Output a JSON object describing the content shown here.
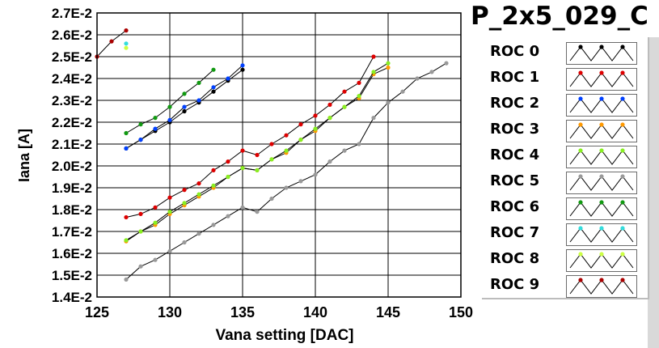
{
  "title": "P_2x5_029_C",
  "chart_data": {
    "type": "line",
    "xlabel": "Vana setting [DAC]",
    "ylabel": "Iana [A]",
    "xlim": [
      125,
      150
    ],
    "ylim": [
      0.014,
      0.027
    ],
    "xticks": [
      "125",
      "130",
      "135",
      "140",
      "145",
      "150"
    ],
    "yticks": [
      "1.4E-2",
      "1.5E-2",
      "1.6E-2",
      "1.7E-2",
      "1.8E-2",
      "1.9E-2",
      "2.0E-2",
      "2.1E-2",
      "2.2E-2",
      "2.3E-2",
      "2.4E-2",
      "2.5E-2",
      "2.6E-2",
      "2.7E-2"
    ],
    "grid": true,
    "legend_position": "right",
    "series": [
      {
        "name": "ROC 0",
        "color": "#000000",
        "x": [
          127,
          128,
          129,
          130,
          131,
          132,
          133,
          134,
          135
        ],
        "y": [
          0.0208,
          0.0212,
          0.0216,
          0.022,
          0.0225,
          0.0229,
          0.0234,
          0.0239,
          0.0244
        ]
      },
      {
        "name": "ROC 1",
        "color": "#dd0000",
        "x": [
          127,
          128,
          129,
          130,
          131,
          132,
          133,
          134,
          135,
          136,
          137,
          138,
          139,
          140,
          141,
          142,
          143,
          144
        ],
        "y": [
          0.01765,
          0.0178,
          0.0181,
          0.01855,
          0.0189,
          0.0192,
          0.0198,
          0.0202,
          0.0207,
          0.0205,
          0.021,
          0.0214,
          0.0219,
          0.0223,
          0.0228,
          0.0234,
          0.0238,
          0.025
        ]
      },
      {
        "name": "ROC 2",
        "color": "#0040ff",
        "x": [
          127,
          128,
          129,
          130,
          131,
          132,
          133,
          134,
          135
        ],
        "y": [
          0.0208,
          0.0212,
          0.0217,
          0.0221,
          0.0227,
          0.023,
          0.0236,
          0.024,
          0.0246
        ]
      },
      {
        "name": "ROC 3",
        "color": "#ff9900",
        "x": [
          127,
          128,
          129,
          130,
          131,
          132,
          133,
          134,
          135,
          136,
          137,
          138,
          139,
          140,
          141,
          142,
          143,
          144,
          145
        ],
        "y": [
          0.01655,
          0.017,
          0.0173,
          0.0178,
          0.0182,
          0.0186,
          0.019,
          0.0195,
          0.0199,
          0.0198,
          0.0203,
          0.0206,
          0.0212,
          0.0216,
          0.0222,
          0.0227,
          0.0231,
          0.0242,
          0.0245
        ]
      },
      {
        "name": "ROC 4",
        "color": "#88ee22",
        "x": [
          127,
          128,
          129,
          130,
          131,
          132,
          133,
          134,
          135,
          136,
          137,
          138,
          139,
          140,
          141,
          142,
          143,
          144,
          145
        ],
        "y": [
          0.0166,
          0.017,
          0.0174,
          0.0179,
          0.0183,
          0.0187,
          0.0191,
          0.0195,
          0.0199,
          0.0198,
          0.0203,
          0.0207,
          0.0212,
          0.0217,
          0.0222,
          0.0227,
          0.0232,
          0.0243,
          0.0247
        ]
      },
      {
        "name": "ROC 5",
        "color": "#999999",
        "x": [
          127,
          128,
          129,
          130,
          131,
          132,
          133,
          134,
          135,
          136,
          137,
          138,
          139,
          140,
          141,
          142,
          143,
          144,
          145,
          146,
          147,
          148,
          149
        ],
        "y": [
          0.0148,
          0.0154,
          0.0157,
          0.0161,
          0.0165,
          0.0169,
          0.0173,
          0.0177,
          0.0181,
          0.0179,
          0.0185,
          0.019,
          0.0193,
          0.0196,
          0.0202,
          0.0207,
          0.021,
          0.0222,
          0.0229,
          0.0234,
          0.024,
          0.0243,
          0.0247
        ]
      },
      {
        "name": "ROC 6",
        "color": "#119911",
        "x": [
          127,
          128,
          129,
          130,
          131,
          132,
          133
        ],
        "y": [
          0.0215,
          0.0219,
          0.0222,
          0.0227,
          0.0233,
          0.0238,
          0.0244
        ]
      },
      {
        "name": "ROC 7",
        "color": "#33dddd",
        "x": [
          127
        ],
        "y": [
          0.0256
        ]
      },
      {
        "name": "ROC 8",
        "color": "#ccff44",
        "x": [
          127
        ],
        "y": [
          0.0254
        ]
      },
      {
        "name": "ROC 9",
        "color": "#aa0000",
        "x": [
          125,
          126,
          127
        ],
        "y": [
          0.025,
          0.0257,
          0.0262
        ]
      }
    ]
  }
}
